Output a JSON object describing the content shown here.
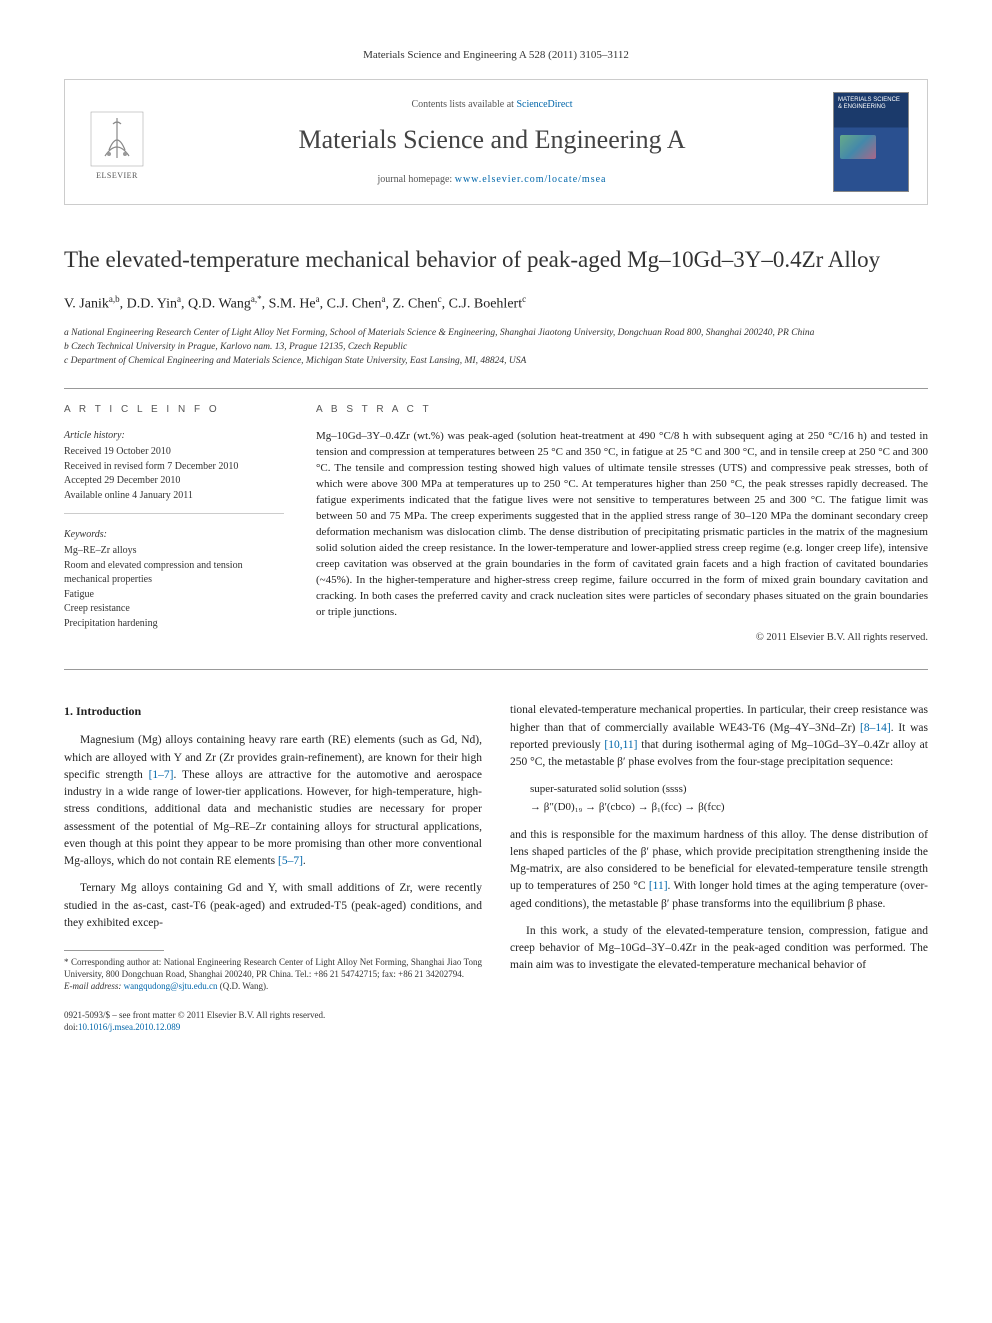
{
  "top_bar": "Materials Science and Engineering A 528 (2011) 3105–3112",
  "header": {
    "publisher": "ELSEVIER",
    "contents_prefix": "Contents lists available at ",
    "contents_link": "ScienceDirect",
    "journal": "Materials Science and Engineering A",
    "homepage_prefix": "journal homepage: ",
    "homepage_url": "www.elsevier.com/locate/msea",
    "cover_title": "MATERIALS SCIENCE & ENGINEERING"
  },
  "title": "The elevated-temperature mechanical behavior of peak-aged Mg–10Gd–3Y–0.4Zr Alloy",
  "authors_html": "V. Janik<sup>a,b</sup>, D.D. Yin<sup>a</sup>, Q.D. Wang<sup>a,*</sup>, S.M. He<sup>a</sup>, C.J. Chen<sup>a</sup>, Z. Chen<sup>c</sup>, C.J. Boehlert<sup>c</sup>",
  "affiliations": [
    "a National Engineering Research Center of Light Alloy Net Forming, School of Materials Science & Engineering, Shanghai Jiaotong University, Dongchuan Road 800, Shanghai 200240, PR China",
    "b Czech Technical University in Prague, Karlovo nam. 13, Prague 12135, Czech Republic",
    "c Department of Chemical Engineering and Materials Science, Michigan State University, East Lansing, MI, 48824, USA"
  ],
  "article_info": {
    "head": "A R T I C L E   I N F O",
    "history_head": "Article history:",
    "history": [
      "Received 19 October 2010",
      "Received in revised form 7 December 2010",
      "Accepted 29 December 2010",
      "Available online 4 January 2011"
    ],
    "keywords_head": "Keywords:",
    "keywords": [
      "Mg–RE–Zr alloys",
      "Room and elevated compression and tension mechanical properties",
      "Fatigue",
      "Creep resistance",
      "Precipitation hardening"
    ]
  },
  "abstract": {
    "head": "A B S T R A C T",
    "text": "Mg–10Gd–3Y–0.4Zr (wt.%) was peak-aged (solution heat-treatment at 490 °C/8 h with subsequent aging at 250 °C/16 h) and tested in tension and compression at temperatures between 25 °C and 350 °C, in fatigue at 25 °C and 300 °C, and in tensile creep at 250 °C and 300 °C. The tensile and compression testing showed high values of ultimate tensile stresses (UTS) and compressive peak stresses, both of which were above 300 MPa at temperatures up to 250 °C. At temperatures higher than 250 °C, the peak stresses rapidly decreased. The fatigue experiments indicated that the fatigue lives were not sensitive to temperatures between 25 and 300 °C. The fatigue limit was between 50 and 75 MPa. The creep experiments suggested that in the applied stress range of 30–120 MPa the dominant secondary creep deformation mechanism was dislocation climb. The dense distribution of precipitating prismatic particles in the matrix of the magnesium solid solution aided the creep resistance. In the lower-temperature and lower-applied stress creep regime (e.g. longer creep life), intensive creep cavitation was observed at the grain boundaries in the form of cavitated grain facets and a high fraction of cavitated boundaries (~45%). In the higher-temperature and higher-stress creep regime, failure occurred in the form of mixed grain boundary cavitation and cracking. In both cases the preferred cavity and crack nucleation sites were particles of secondary phases situated on the grain boundaries or triple junctions.",
    "copyright": "© 2011 Elsevier B.V. All rights reserved."
  },
  "body": {
    "intro_head": "1. Introduction",
    "left_p1": "Magnesium (Mg) alloys containing heavy rare earth (RE) elements (such as Gd, Nd), which are alloyed with Y and Zr (Zr provides grain-refinement), are known for their high specific strength [1–7]. These alloys are attractive for the automotive and aerospace industry in a wide range of lower-tier applications. However, for high-temperature, high-stress conditions, additional data and mechanistic studies are necessary for proper assessment of the potential of Mg–RE–Zr containing alloys for structural applications, even though at this point they appear to be more promising than other more conventional Mg-alloys, which do not contain RE elements [5–7].",
    "left_p2": "Ternary Mg alloys containing Gd and Y, with small additions of Zr, were recently studied in the as-cast, cast-T6 (peak-aged) and extruded-T5 (peak-aged) conditions, and they exhibited excep-",
    "right_p1": "tional elevated-temperature mechanical properties. In particular, their creep resistance was higher than that of commercially available WE43-T6 (Mg–4Y–3Nd–Zr) [8–14]. It was reported previously [10,11] that during isothermal aging of Mg–10Gd–3Y–0.4Zr alloy at 250 °C, the metastable β′ phase evolves from the four-stage precipitation sequence:",
    "eq_line1": "super-saturated solid solution (ssss)",
    "eq_line2": "→ β″(D0)₁₉ → β′(cbco) → β₁(fcc) → β(fcc)",
    "right_p2": "and this is responsible for the maximum hardness of this alloy. The dense distribution of lens shaped particles of the β′ phase, which provide precipitation strengthening inside the Mg-matrix, are also considered to be beneficial for elevated-temperature tensile strength up to temperatures of 250 °C [11]. With longer hold times at the aging temperature (over-aged conditions), the metastable β′ phase transforms into the equilibrium β phase.",
    "right_p3": "In this work, a study of the elevated-temperature tension, compression, fatigue and creep behavior of Mg–10Gd–3Y–0.4Zr in the peak-aged condition was performed. The main aim was to investigate the elevated-temperature mechanical behavior of"
  },
  "footnote": {
    "corr": "* Corresponding author at: National Engineering Research Center of Light Alloy Net Forming, Shanghai Jiao Tong University, 800 Dongchuan Road, Shanghai 200240, PR China. Tel.: +86 21 54742715; fax: +86 21 34202794.",
    "email_label": "E-mail address: ",
    "email": "wangqudong@sjtu.edu.cn",
    "email_suffix": " (Q.D. Wang)."
  },
  "bottom": {
    "line1": "0921-5093/$ – see front matter © 2011 Elsevier B.V. All rights reserved.",
    "doi_label": "doi:",
    "doi": "10.1016/j.msea.2010.12.089"
  },
  "refs": {
    "r1_7": "[1–7]",
    "r5_7": "[5–7]",
    "r8_14": "[8–14]",
    "r10_11": "[10,11]",
    "r11": "[11]"
  },
  "colors": {
    "link": "#0066aa",
    "rule": "#999999",
    "cover_top": "#1b3a6b",
    "cover_body": "#2a5090"
  }
}
